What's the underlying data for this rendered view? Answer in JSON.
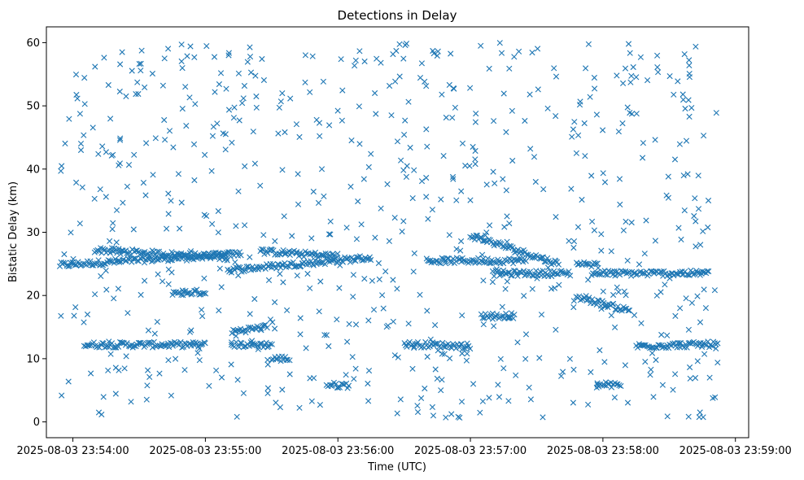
{
  "chart_data": {
    "type": "scatter",
    "title": "Detections in Delay",
    "xlabel": "Time (UTC)",
    "ylabel": "Bistatic Delay (km)",
    "marker": "x",
    "color": "#1f77b4",
    "grid": false,
    "legend": "none",
    "xlim": [
      "2025-08-03 23:53:48",
      "2025-08-03 23:59:06"
    ],
    "ylim": [
      -2.5,
      62.5
    ],
    "x_ticks": [
      "2025-08-03 23:54:00",
      "2025-08-03 23:55:00",
      "2025-08-03 23:56:00",
      "2025-08-03 23:57:00",
      "2025-08-03 23:58:00",
      "2025-08-03 23:59:00"
    ],
    "y_ticks": [
      0,
      10,
      20,
      30,
      40,
      50,
      60
    ],
    "bands": [
      {
        "t0": "23:53:54",
        "t1": "23:55:16",
        "delay_start": 24.8,
        "delay_end": 26.6
      },
      {
        "t0": "23:54:10",
        "t1": "23:55:10",
        "delay_start": 27.2,
        "delay_end": 26.0
      },
      {
        "t0": "23:54:05",
        "t1": "23:55:00",
        "delay_start": 12.2,
        "delay_end": 12.2
      },
      {
        "t0": "23:54:45",
        "t1": "23:55:00",
        "delay_start": 20.5,
        "delay_end": 20.5
      },
      {
        "t0": "23:55:10",
        "t1": "23:56:15",
        "delay_start": 24.0,
        "delay_end": 26.0
      },
      {
        "t0": "23:55:25",
        "t1": "23:56:00",
        "delay_start": 27.0,
        "delay_end": 26.2
      },
      {
        "t0": "23:55:12",
        "t1": "23:55:28",
        "delay_start": 14.3,
        "delay_end": 15.0
      },
      {
        "t0": "23:55:12",
        "t1": "23:55:30",
        "delay_start": 12.2,
        "delay_end": 12.2
      },
      {
        "t0": "23:55:30",
        "t1": "23:55:38",
        "delay_start": 10.0,
        "delay_end": 10.0
      },
      {
        "t0": "23:55:55",
        "t1": "23:56:05",
        "delay_start": 5.8,
        "delay_end": 5.8
      },
      {
        "t0": "23:56:30",
        "t1": "23:57:00",
        "delay_start": 12.3,
        "delay_end": 12.0
      },
      {
        "t0": "23:56:40",
        "t1": "23:57:25",
        "delay_start": 25.5,
        "delay_end": 25.5
      },
      {
        "t0": "23:57:00",
        "t1": "23:57:40",
        "delay_start": 29.5,
        "delay_end": 25.0
      },
      {
        "t0": "23:57:05",
        "t1": "23:57:20",
        "delay_start": 16.8,
        "delay_end": 16.8
      },
      {
        "t0": "23:57:10",
        "t1": "23:57:45",
        "delay_start": 23.5,
        "delay_end": 23.5
      },
      {
        "t0": "23:57:48",
        "t1": "23:58:12",
        "delay_start": 19.8,
        "delay_end": 17.6
      },
      {
        "t0": "23:57:55",
        "t1": "23:58:48",
        "delay_start": 23.5,
        "delay_end": 23.5
      },
      {
        "t0": "23:57:57",
        "t1": "23:58:08",
        "delay_start": 5.8,
        "delay_end": 5.8
      },
      {
        "t0": "23:58:15",
        "t1": "23:58:52",
        "delay_start": 12.0,
        "delay_end": 12.3
      },
      {
        "t0": "23:57:48",
        "t1": "23:57:58",
        "delay_start": 24.8,
        "delay_end": 24.8
      }
    ],
    "clutter": {
      "t0": "23:53:54",
      "t1": "23:58:52",
      "delay_min": 0.5,
      "delay_max": 60,
      "count": 700
    }
  }
}
